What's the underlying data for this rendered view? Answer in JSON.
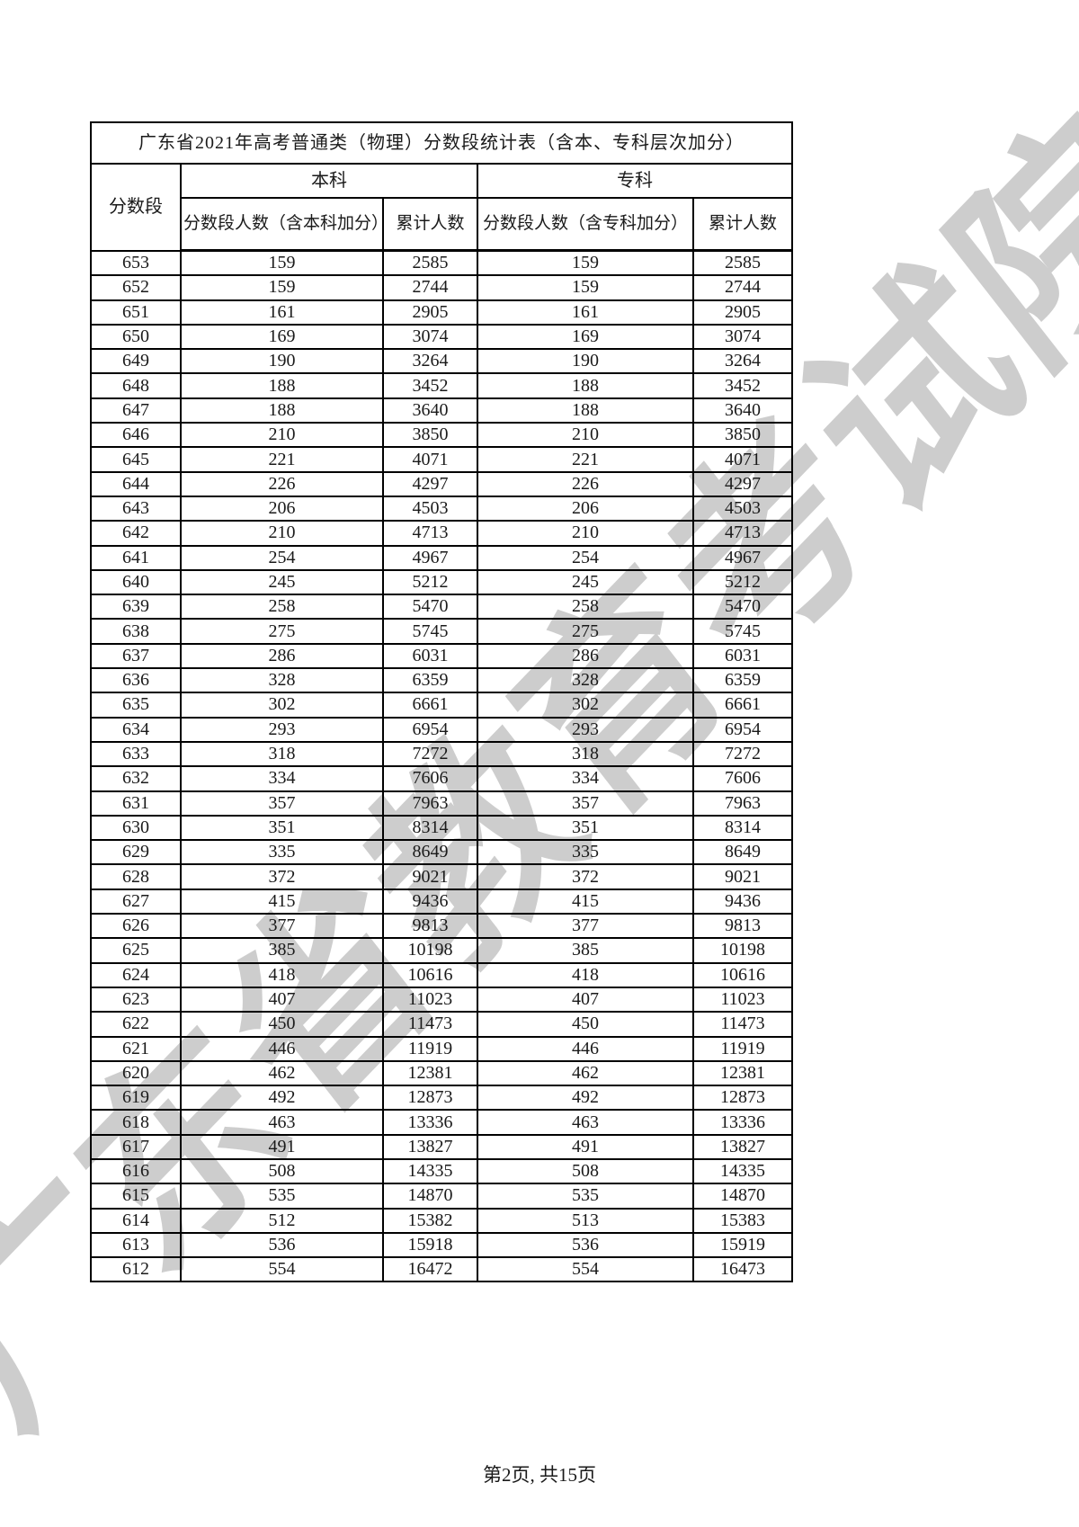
{
  "watermark": "广东省教育考试院",
  "footer": "第2页, 共15页",
  "table": {
    "title": "广东省2021年高考普通类（物理）分数段统计表（含本、专科层次加分）",
    "header": {
      "score": "分数段",
      "benke_group": "本科",
      "zhuanke_group": "专科",
      "benke_count": "分数段人数（含本科加分）",
      "benke_cum": "累计人数",
      "zhuanke_count": "分数段人数（含专科加分）",
      "zhuanke_cum": "累计人数"
    },
    "rows": [
      [
        653,
        159,
        2585,
        159,
        2585
      ],
      [
        652,
        159,
        2744,
        159,
        2744
      ],
      [
        651,
        161,
        2905,
        161,
        2905
      ],
      [
        650,
        169,
        3074,
        169,
        3074
      ],
      [
        649,
        190,
        3264,
        190,
        3264
      ],
      [
        648,
        188,
        3452,
        188,
        3452
      ],
      [
        647,
        188,
        3640,
        188,
        3640
      ],
      [
        646,
        210,
        3850,
        210,
        3850
      ],
      [
        645,
        221,
        4071,
        221,
        4071
      ],
      [
        644,
        226,
        4297,
        226,
        4297
      ],
      [
        643,
        206,
        4503,
        206,
        4503
      ],
      [
        642,
        210,
        4713,
        210,
        4713
      ],
      [
        641,
        254,
        4967,
        254,
        4967
      ],
      [
        640,
        245,
        5212,
        245,
        5212
      ],
      [
        639,
        258,
        5470,
        258,
        5470
      ],
      [
        638,
        275,
        5745,
        275,
        5745
      ],
      [
        637,
        286,
        6031,
        286,
        6031
      ],
      [
        636,
        328,
        6359,
        328,
        6359
      ],
      [
        635,
        302,
        6661,
        302,
        6661
      ],
      [
        634,
        293,
        6954,
        293,
        6954
      ],
      [
        633,
        318,
        7272,
        318,
        7272
      ],
      [
        632,
        334,
        7606,
        334,
        7606
      ],
      [
        631,
        357,
        7963,
        357,
        7963
      ],
      [
        630,
        351,
        8314,
        351,
        8314
      ],
      [
        629,
        335,
        8649,
        335,
        8649
      ],
      [
        628,
        372,
        9021,
        372,
        9021
      ],
      [
        627,
        415,
        9436,
        415,
        9436
      ],
      [
        626,
        377,
        9813,
        377,
        9813
      ],
      [
        625,
        385,
        10198,
        385,
        10198
      ],
      [
        624,
        418,
        10616,
        418,
        10616
      ],
      [
        623,
        407,
        11023,
        407,
        11023
      ],
      [
        622,
        450,
        11473,
        450,
        11473
      ],
      [
        621,
        446,
        11919,
        446,
        11919
      ],
      [
        620,
        462,
        12381,
        462,
        12381
      ],
      [
        619,
        492,
        12873,
        492,
        12873
      ],
      [
        618,
        463,
        13336,
        463,
        13336
      ],
      [
        617,
        491,
        13827,
        491,
        13827
      ],
      [
        616,
        508,
        14335,
        508,
        14335
      ],
      [
        615,
        535,
        14870,
        535,
        14870
      ],
      [
        614,
        512,
        15382,
        513,
        15383
      ],
      [
        613,
        536,
        15918,
        536,
        15919
      ],
      [
        612,
        554,
        16472,
        554,
        16473
      ]
    ]
  }
}
